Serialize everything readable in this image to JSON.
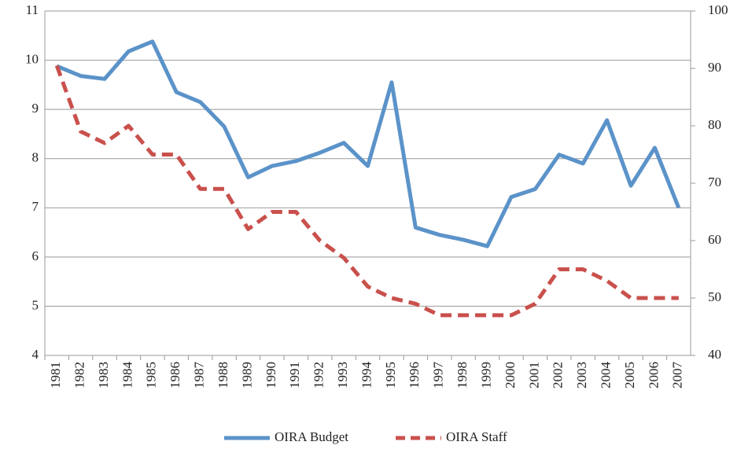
{
  "chart_data": {
    "type": "line",
    "categories": [
      "1981",
      "1982",
      "1983",
      "1984",
      "1985",
      "1986",
      "1987",
      "1988",
      "1989",
      "1990",
      "1991",
      "1992",
      "1993",
      "1994",
      "1995",
      "1996",
      "1997",
      "1998",
      "1999",
      "2000",
      "2001",
      "2002",
      "2003",
      "2004",
      "2005",
      "2006",
      "2007"
    ],
    "series": [
      {
        "name": "OIRA Budget",
        "color": "#5b93c9",
        "dash": false,
        "axis": "y",
        "values": [
          9.88,
          9.68,
          9.62,
          10.18,
          10.38,
          9.35,
          9.15,
          8.65,
          7.62,
          7.85,
          7.95,
          8.12,
          8.32,
          7.85,
          9.55,
          6.6,
          6.45,
          6.35,
          6.22,
          7.22,
          7.38,
          8.08,
          7.9,
          8.78,
          7.45,
          8.22,
          7.0
        ]
      },
      {
        "name": "OIRA Staff",
        "color": "#c9504c",
        "dash": true,
        "axis": "y2",
        "values": [
          90.5,
          79,
          77,
          80,
          75,
          75,
          69,
          69,
          62,
          65,
          65,
          60,
          57,
          52,
          50,
          49,
          47,
          47,
          47,
          47,
          49,
          55,
          55,
          53,
          50,
          50,
          50
        ]
      }
    ],
    "ylim": [
      4,
      11
    ],
    "yticks": [
      4,
      5,
      6,
      7,
      8,
      9,
      10,
      11
    ],
    "y2lim": [
      40,
      100
    ],
    "y2ticks": [
      40,
      50,
      60,
      70,
      80,
      90,
      100
    ],
    "grid": true,
    "legend": "bottom"
  }
}
